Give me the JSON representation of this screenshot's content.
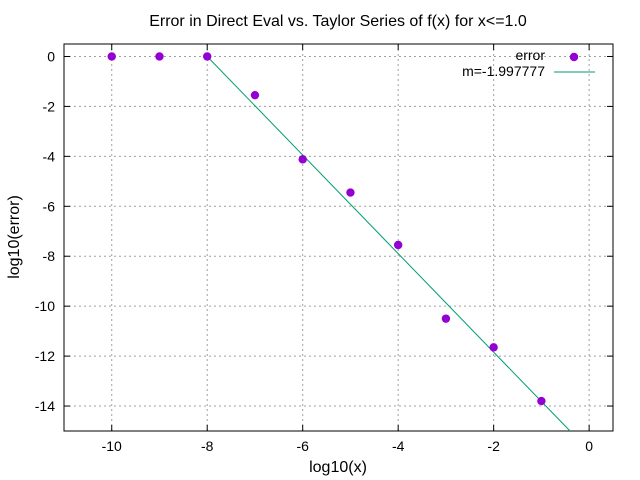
{
  "chart_data": {
    "type": "scatter",
    "title": "Error in Direct Eval vs. Taylor Series of f(x) for x<=1.0",
    "xlabel": "log10(x)",
    "ylabel": "log10(error)",
    "xlim": [
      -11,
      0.5
    ],
    "ylim": [
      -15,
      0.5
    ],
    "xticks": [
      -10,
      -8,
      -6,
      -4,
      -2,
      0
    ],
    "yticks": [
      0,
      -2,
      -4,
      -6,
      -8,
      -10,
      -12,
      -14
    ],
    "grid": true,
    "legend_position": "top-right",
    "series": [
      {
        "name": "error",
        "kind": "points",
        "color": "#9400d3",
        "x": [
          -10,
          -9,
          -8,
          -7,
          -6,
          -5,
          -4,
          -3,
          -2,
          -1
        ],
        "y": [
          0.0,
          0.0,
          0.0,
          -1.55,
          -4.12,
          -5.45,
          -7.55,
          -10.5,
          -11.65,
          -13.8
        ]
      },
      {
        "name": "m=-1.997777",
        "kind": "line",
        "color": "#009e73",
        "slope": -1.997777,
        "x": [
          -8,
          -0.4
        ],
        "y": [
          0.0,
          -15.0
        ]
      }
    ]
  }
}
